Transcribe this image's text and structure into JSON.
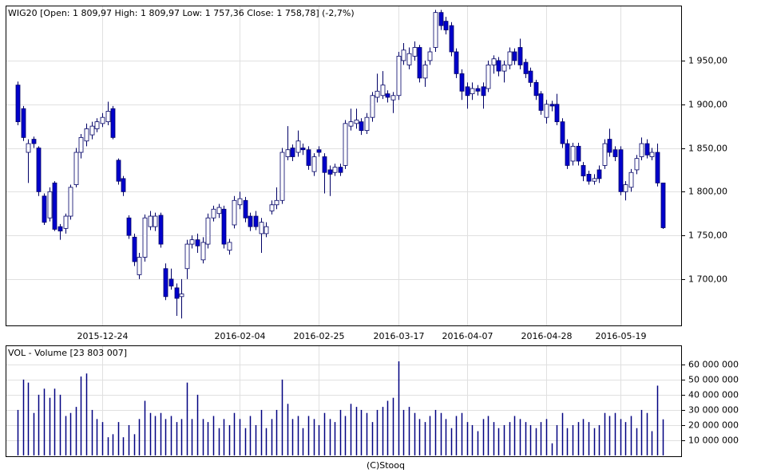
{
  "chart_data": [
    {
      "type": "candlestick",
      "title": "WIG20 [Open: 1 809,97  High: 1 809,97  Low: 1 757,36  Close: 1 758,78] (-2,7%)",
      "categories": [
        null,
        null,
        null,
        null,
        null,
        null,
        null,
        null,
        null,
        null,
        null,
        null,
        null,
        null,
        null,
        null,
        "2015-12-24",
        null,
        null,
        null,
        null,
        null,
        null,
        null,
        null,
        null,
        null,
        null,
        null,
        null,
        null,
        null,
        null,
        null,
        null,
        null,
        null,
        null,
        null,
        null,
        null,
        null,
        "2016-02-04",
        null,
        null,
        null,
        null,
        null,
        null,
        null,
        null,
        null,
        null,
        null,
        null,
        null,
        null,
        "2016-02-25",
        null,
        null,
        null,
        null,
        null,
        null,
        null,
        null,
        null,
        null,
        null,
        null,
        null,
        null,
        "2016-03-17",
        null,
        null,
        null,
        null,
        null,
        null,
        null,
        null,
        null,
        null,
        null,
        null,
        "2016-04-07",
        null,
        null,
        null,
        null,
        null,
        null,
        null,
        null,
        null,
        null,
        null,
        null,
        null,
        null,
        "2016-04-28",
        null,
        null,
        null,
        null,
        null,
        null,
        null,
        null,
        null,
        null,
        null,
        null,
        null,
        "2016-05-19",
        null,
        null,
        null,
        null,
        null,
        null,
        null,
        null
      ],
      "open": [
        1922,
        1895,
        1845,
        1860,
        1850,
        1795,
        1770,
        1810,
        1760,
        1758,
        1772,
        1808,
        1845,
        1858,
        1865,
        1872,
        1878,
        1880,
        1895,
        1836,
        1815,
        1770,
        1748,
        1705,
        1725,
        1760,
        1760,
        1773,
        1712,
        1700,
        1690,
        1680,
        1712,
        1740,
        1745,
        1722,
        1740,
        1770,
        1775,
        1780,
        1733,
        1762,
        1785,
        1790,
        1772,
        1772,
        1752,
        1752,
        1778,
        1785,
        1790,
        1840,
        1850,
        1845,
        1850,
        1848,
        1823,
        1848,
        1840,
        1825,
        1822,
        1828,
        1830,
        1875,
        1878,
        1880,
        1870,
        1885,
        1908,
        1910,
        1912,
        1905,
        1910,
        1950,
        1945,
        1955,
        1965,
        1930,
        1950,
        1965,
        2005,
        1995,
        1990,
        1960,
        1935,
        1920,
        1912,
        1918,
        1920,
        1918,
        1945,
        1950,
        1938,
        1945,
        1960,
        1965,
        1948,
        1938,
        1925,
        1912,
        1885,
        1900,
        1900,
        1880,
        1855,
        1835,
        1852,
        1830,
        1820,
        1812,
        1825,
        1830,
        1860,
        1848,
        1848,
        1800,
        1805,
        1825,
        1840,
        1855,
        1840,
        1845,
        1809.97
      ],
      "high": [
        1926,
        1898,
        1860,
        1863,
        1852,
        1798,
        1805,
        1812,
        1763,
        1775,
        1808,
        1850,
        1866,
        1878,
        1880,
        1884,
        1890,
        1903,
        1898,
        1838,
        1818,
        1773,
        1752,
        1730,
        1774,
        1778,
        1776,
        1776,
        1718,
        1712,
        1695,
        1700,
        1745,
        1750,
        1752,
        1748,
        1775,
        1784,
        1786,
        1784,
        1746,
        1795,
        1800,
        1794,
        1776,
        1778,
        1770,
        1765,
        1790,
        1805,
        1850,
        1875,
        1854,
        1870,
        1855,
        1852,
        1844,
        1852,
        1844,
        1830,
        1832,
        1832,
        1882,
        1895,
        1895,
        1884,
        1890,
        1914,
        1935,
        1938,
        1916,
        1914,
        1960,
        1970,
        1965,
        1972,
        1968,
        1950,
        1965,
        2008,
        2008,
        2000,
        1994,
        1964,
        1940,
        1925,
        1925,
        1922,
        1925,
        1950,
        1956,
        1954,
        1950,
        1965,
        1964,
        1975,
        1952,
        1942,
        1928,
        1915,
        1905,
        1904,
        1912,
        1884,
        1860,
        1856,
        1856,
        1834,
        1824,
        1820,
        1830,
        1860,
        1872,
        1852,
        1852,
        1812,
        1826,
        1842,
        1862,
        1860,
        1850,
        1855,
        1809.97
      ],
      "low": [
        1876,
        1858,
        1810,
        1850,
        1795,
        1762,
        1766,
        1755,
        1745,
        1752,
        1768,
        1805,
        1838,
        1852,
        1860,
        1868,
        1874,
        1876,
        1860,
        1808,
        1795,
        1746,
        1715,
        1700,
        1720,
        1756,
        1755,
        1736,
        1676,
        1688,
        1658,
        1655,
        1700,
        1735,
        1730,
        1718,
        1735,
        1766,
        1770,
        1735,
        1728,
        1758,
        1780,
        1765,
        1755,
        1756,
        1730,
        1748,
        1774,
        1780,
        1786,
        1836,
        1835,
        1840,
        1842,
        1825,
        1818,
        1840,
        1798,
        1795,
        1818,
        1818,
        1826,
        1870,
        1872,
        1865,
        1866,
        1880,
        1902,
        1906,
        1902,
        1890,
        1905,
        1945,
        1940,
        1950,
        1925,
        1920,
        1945,
        1960,
        1985,
        1980,
        1955,
        1930,
        1905,
        1895,
        1905,
        1910,
        1895,
        1914,
        1935,
        1932,
        1925,
        1940,
        1945,
        1940,
        1930,
        1920,
        1905,
        1888,
        1878,
        1892,
        1876,
        1850,
        1826,
        1830,
        1830,
        1812,
        1808,
        1808,
        1810,
        1826,
        1840,
        1835,
        1796,
        1790,
        1800,
        1820,
        1836,
        1838,
        1836,
        1806,
        1757.36
      ],
      "close": [
        1880,
        1862,
        1855,
        1855,
        1800,
        1765,
        1800,
        1757,
        1755,
        1772,
        1805,
        1845,
        1862,
        1872,
        1875,
        1880,
        1885,
        1892,
        1862,
        1812,
        1800,
        1750,
        1720,
        1725,
        1770,
        1772,
        1772,
        1740,
        1680,
        1692,
        1678,
        1683,
        1740,
        1745,
        1738,
        1742,
        1770,
        1780,
        1782,
        1740,
        1742,
        1790,
        1792,
        1770,
        1760,
        1760,
        1765,
        1760,
        1785,
        1790,
        1845,
        1848,
        1840,
        1858,
        1848,
        1830,
        1840,
        1845,
        1822,
        1820,
        1828,
        1822,
        1878,
        1880,
        1882,
        1870,
        1885,
        1910,
        1915,
        1922,
        1908,
        1910,
        1955,
        1962,
        1958,
        1965,
        1930,
        1945,
        1960,
        2005,
        1990,
        1985,
        1960,
        1935,
        1915,
        1910,
        1918,
        1915,
        1910,
        1945,
        1952,
        1938,
        1945,
        1960,
        1950,
        1945,
        1935,
        1925,
        1910,
        1893,
        1900,
        1898,
        1880,
        1855,
        1830,
        1852,
        1835,
        1818,
        1812,
        1815,
        1815,
        1855,
        1845,
        1840,
        1800,
        1808,
        1822,
        1838,
        1855,
        1842,
        1845,
        1810,
        1758.78
      ],
      "up_color": "#ffffff",
      "down_color": "#0000cc",
      "wick_color": "#000066",
      "ylim": [
        1647,
        2012
      ],
      "yticks": [
        {
          "value": 1700,
          "label": "1 700,00"
        },
        {
          "value": 1750,
          "label": "1 750,00"
        },
        {
          "value": 1800,
          "label": "1 800,00"
        },
        {
          "value": 1850,
          "label": "1 850,00"
        },
        {
          "value": 1900,
          "label": "1 900,00"
        },
        {
          "value": 1950,
          "label": "1 950,00"
        }
      ],
      "grid": true
    },
    {
      "type": "bar",
      "title": "VOL - Volume [23 803 007]",
      "values": [
        30000000,
        50000000,
        48000000,
        28000000,
        40000000,
        44000000,
        38000000,
        44000000,
        40000000,
        26000000,
        28000000,
        32000000,
        52000000,
        54000000,
        30000000,
        24000000,
        22000000,
        12000000,
        14000000,
        22000000,
        12000000,
        20000000,
        14000000,
        24000000,
        36000000,
        28000000,
        26000000,
        28000000,
        24000000,
        26000000,
        22000000,
        24000000,
        48000000,
        24000000,
        40000000,
        24000000,
        22000000,
        26000000,
        18000000,
        24000000,
        20000000,
        28000000,
        24000000,
        18000000,
        26000000,
        20000000,
        30000000,
        18000000,
        24000000,
        30000000,
        50000000,
        34000000,
        24000000,
        26000000,
        18000000,
        26000000,
        24000000,
        20000000,
        28000000,
        24000000,
        22000000,
        30000000,
        26000000,
        34000000,
        32000000,
        30000000,
        28000000,
        22000000,
        30000000,
        32000000,
        36000000,
        38000000,
        62000000,
        30000000,
        32000000,
        28000000,
        24000000,
        22000000,
        26000000,
        30000000,
        28000000,
        24000000,
        18000000,
        26000000,
        28000000,
        22000000,
        20000000,
        16000000,
        24000000,
        26000000,
        22000000,
        18000000,
        20000000,
        22000000,
        26000000,
        24000000,
        22000000,
        20000000,
        18000000,
        22000000,
        24000000,
        8000000,
        20000000,
        28000000,
        18000000,
        20000000,
        22000000,
        24000000,
        22000000,
        18000000,
        20000000,
        28000000,
        26000000,
        28000000,
        24000000,
        22000000,
        26000000,
        18000000,
        30000000,
        28000000,
        16000000,
        46000000,
        23803007
      ],
      "color": "#000080",
      "ylim": [
        0,
        72000000
      ],
      "yticks": [
        {
          "value": 10000000,
          "label": "10 000 000"
        },
        {
          "value": 20000000,
          "label": "20 000 000"
        },
        {
          "value": 30000000,
          "label": "30 000 000"
        },
        {
          "value": 40000000,
          "label": "40 000 000"
        },
        {
          "value": 50000000,
          "label": "50 000 000"
        },
        {
          "value": 60000000,
          "label": "60 000 000"
        }
      ],
      "grid": true
    }
  ],
  "footer": "(C)Stooq"
}
